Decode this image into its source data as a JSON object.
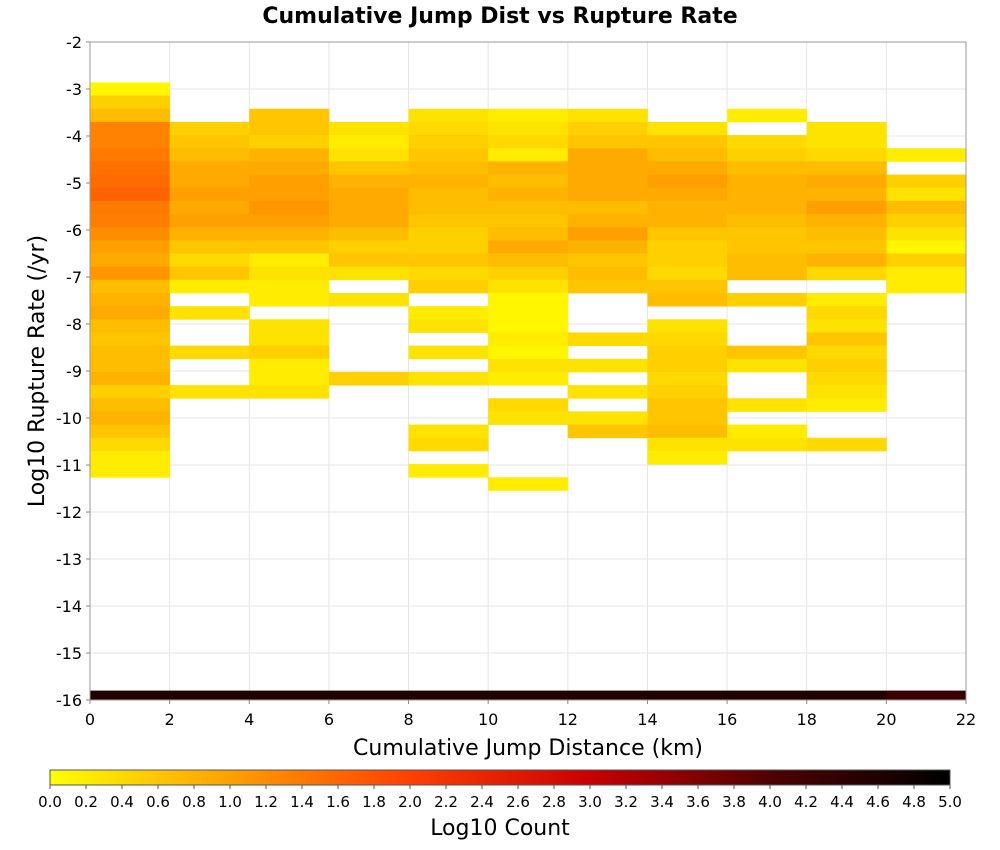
{
  "chart_data": {
    "type": "heatmap",
    "title": "Cumulative Jump Dist vs Rupture Rate",
    "xlabel": "Cumulative Jump Distance (km)",
    "ylabel": "Log10 Rupture Rate (/yr)",
    "xlim": [
      0,
      22
    ],
    "ylim": [
      -16,
      -2
    ],
    "x_bin_width": 2,
    "y_bin_width": 0.28,
    "xticks": [
      "0",
      "2",
      "4",
      "6",
      "8",
      "10",
      "12",
      "14",
      "16",
      "18",
      "20",
      "22"
    ],
    "yticks": [
      "-16",
      "-15",
      "-14",
      "-13",
      "-12",
      "-11",
      "-10",
      "-9",
      "-8",
      "-7",
      "-6",
      "-5",
      "-4",
      "-3",
      "-2"
    ],
    "grid": true,
    "colorbar": {
      "label": "Log10 Count",
      "range": [
        0,
        5
      ],
      "ticks": [
        "0.0",
        "0.2",
        "0.4",
        "0.6",
        "0.8",
        "1.0",
        "1.2",
        "1.4",
        "1.6",
        "1.8",
        "2.0",
        "2.2",
        "2.4",
        "2.6",
        "2.8",
        "3.0",
        "3.2",
        "3.4",
        "3.6",
        "3.8",
        "4.0",
        "4.2",
        "4.4",
        "4.6",
        "4.8",
        "5.0"
      ],
      "colors": [
        "#ffff00",
        "#ffa000",
        "#ff4000",
        "#c80000",
        "#500000",
        "#000000"
      ]
    },
    "bins": [
      {
        "x": 0,
        "y_bins": [
          [
            -3.0,
            0.1
          ],
          [
            -3.28,
            0.5
          ],
          [
            -3.56,
            0.7
          ],
          [
            -3.84,
            1.3
          ],
          [
            -4.12,
            1.3
          ],
          [
            -4.4,
            1.4
          ],
          [
            -4.68,
            1.5
          ],
          [
            -4.96,
            1.55
          ],
          [
            -5.24,
            1.65
          ],
          [
            -5.52,
            1.4
          ],
          [
            -5.8,
            1.35
          ],
          [
            -6.08,
            1.2
          ],
          [
            -6.36,
            1.0
          ],
          [
            -6.64,
            0.9
          ],
          [
            -6.92,
            1.1
          ],
          [
            -7.2,
            0.7
          ],
          [
            -7.48,
            0.8
          ],
          [
            -7.76,
            0.9
          ],
          [
            -8.04,
            0.7
          ],
          [
            -8.32,
            0.6
          ],
          [
            -8.6,
            0.7
          ],
          [
            -8.88,
            0.7
          ],
          [
            -9.16,
            0.8
          ],
          [
            -9.44,
            0.5
          ],
          [
            -9.72,
            0.7
          ],
          [
            -10.0,
            0.8
          ],
          [
            -10.28,
            0.6
          ],
          [
            -10.56,
            0.4
          ],
          [
            -10.84,
            0.2
          ],
          [
            -11.12,
            0.2
          ]
        ]
      },
      {
        "x": 2,
        "y_bins": [
          [
            -3.84,
            0.5
          ],
          [
            -4.12,
            0.6
          ],
          [
            -4.4,
            0.7
          ],
          [
            -4.68,
            0.9
          ],
          [
            -4.96,
            0.9
          ],
          [
            -5.24,
            1.0
          ],
          [
            -5.52,
            0.9
          ],
          [
            -5.8,
            1.0
          ],
          [
            -6.08,
            0.8
          ],
          [
            -6.36,
            0.6
          ],
          [
            -6.64,
            0.4
          ],
          [
            -6.92,
            0.6
          ],
          [
            -7.2,
            0.2
          ],
          [
            -7.76,
            0.3
          ],
          [
            -8.6,
            0.4
          ],
          [
            -9.44,
            0.3
          ]
        ]
      },
      {
        "x": 4,
        "y_bins": [
          [
            -3.56,
            0.6
          ],
          [
            -3.84,
            0.6
          ],
          [
            -4.12,
            0.5
          ],
          [
            -4.4,
            0.8
          ],
          [
            -4.68,
            0.9
          ],
          [
            -4.96,
            1.0
          ],
          [
            -5.24,
            1.0
          ],
          [
            -5.52,
            1.1
          ],
          [
            -5.8,
            1.0
          ],
          [
            -6.08,
            0.8
          ],
          [
            -6.36,
            0.6
          ],
          [
            -6.64,
            0.2
          ],
          [
            -6.92,
            0.3
          ],
          [
            -7.2,
            0.2
          ],
          [
            -7.48,
            0.2
          ],
          [
            -8.04,
            0.3
          ],
          [
            -8.32,
            0.3
          ],
          [
            -8.6,
            0.5
          ],
          [
            -8.88,
            0.2
          ],
          [
            -9.16,
            0.2
          ],
          [
            -9.44,
            0.3
          ]
        ]
      },
      {
        "x": 6,
        "y_bins": [
          [
            -3.84,
            0.3
          ],
          [
            -4.12,
            0.2
          ],
          [
            -4.4,
            0.3
          ],
          [
            -4.68,
            0.6
          ],
          [
            -4.96,
            0.8
          ],
          [
            -5.24,
            0.9
          ],
          [
            -5.52,
            0.9
          ],
          [
            -5.8,
            0.9
          ],
          [
            -6.08,
            0.7
          ],
          [
            -6.36,
            0.5
          ],
          [
            -6.64,
            0.6
          ],
          [
            -6.92,
            0.3
          ],
          [
            -7.48,
            0.3
          ],
          [
            -9.16,
            0.5
          ]
        ]
      },
      {
        "x": 8,
        "y_bins": [
          [
            -3.56,
            0.3
          ],
          [
            -3.84,
            0.4
          ],
          [
            -4.12,
            0.5
          ],
          [
            -4.4,
            0.6
          ],
          [
            -4.68,
            0.7
          ],
          [
            -4.96,
            0.8
          ],
          [
            -5.24,
            0.7
          ],
          [
            -5.52,
            0.7
          ],
          [
            -5.8,
            0.6
          ],
          [
            -6.08,
            0.5
          ],
          [
            -6.36,
            0.5
          ],
          [
            -6.64,
            0.6
          ],
          [
            -6.92,
            0.4
          ],
          [
            -7.2,
            0.5
          ],
          [
            -7.76,
            0.2
          ],
          [
            -8.04,
            0.3
          ],
          [
            -8.6,
            0.3
          ],
          [
            -9.16,
            0.3
          ],
          [
            -10.28,
            0.3
          ],
          [
            -10.56,
            0.4
          ],
          [
            -11.12,
            0.2
          ]
        ]
      },
      {
        "x": 10,
        "y_bins": [
          [
            -3.56,
            0.2
          ],
          [
            -3.84,
            0.3
          ],
          [
            -4.12,
            0.4
          ],
          [
            -4.4,
            0.2
          ],
          [
            -4.68,
            0.8
          ],
          [
            -4.96,
            0.7
          ],
          [
            -5.24,
            0.8
          ],
          [
            -5.52,
            0.7
          ],
          [
            -5.8,
            0.6
          ],
          [
            -6.08,
            0.7
          ],
          [
            -6.36,
            0.9
          ],
          [
            -6.64,
            0.7
          ],
          [
            -6.92,
            0.5
          ],
          [
            -7.2,
            0.3
          ],
          [
            -7.48,
            0.1
          ],
          [
            -7.76,
            0.1
          ],
          [
            -8.04,
            0.1
          ],
          [
            -8.32,
            0.2
          ],
          [
            -8.6,
            0.1
          ],
          [
            -8.88,
            0.3
          ],
          [
            -9.16,
            0.2
          ],
          [
            -9.72,
            0.4
          ],
          [
            -10.0,
            0.3
          ],
          [
            -11.4,
            0.2
          ]
        ]
      },
      {
        "x": 12,
        "y_bins": [
          [
            -3.56,
            0.3
          ],
          [
            -3.84,
            0.5
          ],
          [
            -4.12,
            0.6
          ],
          [
            -4.4,
            0.9
          ],
          [
            -4.68,
            0.9
          ],
          [
            -4.96,
            0.9
          ],
          [
            -5.24,
            0.9
          ],
          [
            -5.52,
            0.7
          ],
          [
            -5.8,
            0.8
          ],
          [
            -6.08,
            1.0
          ],
          [
            -6.36,
            0.8
          ],
          [
            -6.64,
            0.6
          ],
          [
            -6.92,
            0.7
          ],
          [
            -7.2,
            0.6
          ],
          [
            -8.32,
            0.4
          ],
          [
            -8.88,
            0.3
          ],
          [
            -9.44,
            0.3
          ],
          [
            -10.0,
            0.3
          ],
          [
            -10.28,
            0.6
          ]
        ]
      },
      {
        "x": 14,
        "y_bins": [
          [
            -3.84,
            0.3
          ],
          [
            -4.12,
            0.6
          ],
          [
            -4.4,
            0.7
          ],
          [
            -4.68,
            0.9
          ],
          [
            -4.96,
            1.0
          ],
          [
            -5.24,
            0.9
          ],
          [
            -5.52,
            0.8
          ],
          [
            -5.8,
            0.8
          ],
          [
            -6.08,
            0.6
          ],
          [
            -6.36,
            0.5
          ],
          [
            -6.64,
            0.5
          ],
          [
            -6.92,
            0.4
          ],
          [
            -7.2,
            0.6
          ],
          [
            -7.48,
            0.7
          ],
          [
            -8.04,
            0.3
          ],
          [
            -8.32,
            0.4
          ],
          [
            -8.6,
            0.5
          ],
          [
            -8.88,
            0.5
          ],
          [
            -9.16,
            0.4
          ],
          [
            -9.44,
            0.5
          ],
          [
            -9.72,
            0.6
          ],
          [
            -10.0,
            0.6
          ],
          [
            -10.28,
            0.7
          ],
          [
            -10.56,
            0.3
          ],
          [
            -10.84,
            0.2
          ]
        ]
      },
      {
        "x": 16,
        "y_bins": [
          [
            -3.56,
            0.2
          ],
          [
            -4.12,
            0.4
          ],
          [
            -4.4,
            0.5
          ],
          [
            -4.68,
            0.7
          ],
          [
            -4.96,
            0.8
          ],
          [
            -5.24,
            0.8
          ],
          [
            -5.52,
            0.8
          ],
          [
            -5.8,
            0.7
          ],
          [
            -6.08,
            0.6
          ],
          [
            -6.36,
            0.6
          ],
          [
            -6.64,
            0.7
          ],
          [
            -6.92,
            0.7
          ],
          [
            -7.48,
            0.5
          ],
          [
            -8.6,
            0.6
          ],
          [
            -8.88,
            0.3
          ],
          [
            -9.72,
            0.3
          ],
          [
            -10.28,
            0.2
          ],
          [
            -10.56,
            0.3
          ]
        ]
      },
      {
        "x": 18,
        "y_bins": [
          [
            -3.84,
            0.3
          ],
          [
            -4.12,
            0.3
          ],
          [
            -4.4,
            0.4
          ],
          [
            -4.68,
            0.7
          ],
          [
            -4.96,
            0.9
          ],
          [
            -5.24,
            0.8
          ],
          [
            -5.52,
            1.0
          ],
          [
            -5.8,
            0.8
          ],
          [
            -6.08,
            0.7
          ],
          [
            -6.36,
            0.6
          ],
          [
            -6.64,
            0.8
          ],
          [
            -6.92,
            0.4
          ],
          [
            -7.48,
            0.2
          ],
          [
            -7.76,
            0.4
          ],
          [
            -8.04,
            0.3
          ],
          [
            -8.32,
            0.6
          ],
          [
            -8.6,
            0.4
          ],
          [
            -8.88,
            0.5
          ],
          [
            -9.16,
            0.4
          ],
          [
            -9.44,
            0.3
          ],
          [
            -9.72,
            0.2
          ],
          [
            -10.56,
            0.4
          ]
        ]
      },
      {
        "x": 20,
        "y_bins": [
          [
            -4.4,
            0.2
          ],
          [
            -4.96,
            0.5
          ],
          [
            -5.24,
            0.3
          ],
          [
            -5.52,
            0.7
          ],
          [
            -5.8,
            0.5
          ],
          [
            -6.08,
            0.3
          ],
          [
            -6.36,
            0.1
          ],
          [
            -6.64,
            0.5
          ],
          [
            -6.92,
            0.2
          ],
          [
            -7.2,
            0.2
          ]
        ]
      }
    ],
    "floor_row": {
      "y": -16,
      "values": [
        4.6,
        4.6,
        4.6,
        4.6,
        4.6,
        4.6,
        4.6,
        4.6,
        4.6,
        4.6,
        4.3
      ]
    }
  }
}
